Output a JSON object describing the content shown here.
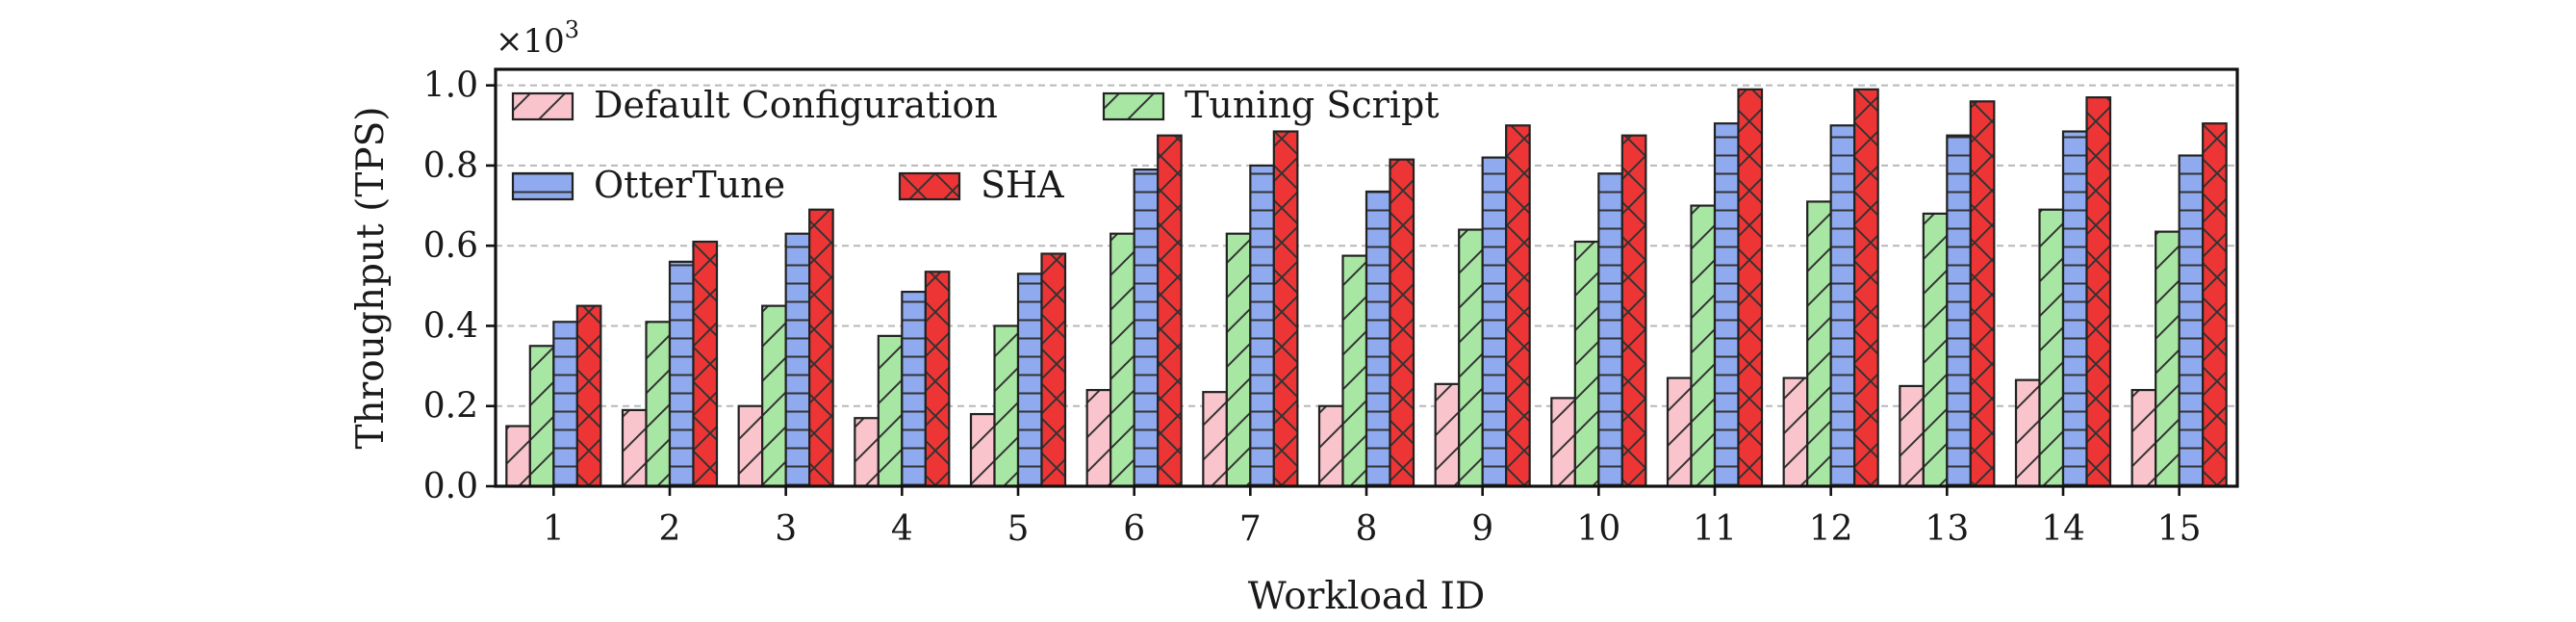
{
  "chart_data": {
    "type": "bar",
    "xlabel": "Workload ID",
    "ylabel": "Throughput (TPS)",
    "y_multiplier": "×10",
    "y_multiplier_exp": "3",
    "ylim": [
      0,
      1.04
    ],
    "yticks": [
      "0.0",
      "0.2",
      "0.4",
      "0.6",
      "0.8",
      "1.0"
    ],
    "grid": "horizontal dashed",
    "legend_position": "top-left",
    "categories": [
      "1",
      "2",
      "3",
      "4",
      "5",
      "6",
      "7",
      "8",
      "9",
      "10",
      "11",
      "12",
      "13",
      "14",
      "15"
    ],
    "series": [
      {
        "name": "Default Configuration",
        "color": "#f9c4cc",
        "hatch": "diagonal",
        "values": [
          0.15,
          0.19,
          0.2,
          0.17,
          0.18,
          0.24,
          0.235,
          0.2,
          0.255,
          0.22,
          0.27,
          0.27,
          0.25,
          0.265,
          0.24
        ]
      },
      {
        "name": "Tuning Script",
        "color": "#a8e6a3",
        "hatch": "diagonal",
        "values": [
          0.35,
          0.41,
          0.45,
          0.375,
          0.4,
          0.63,
          0.63,
          0.575,
          0.64,
          0.61,
          0.7,
          0.71,
          0.68,
          0.69,
          0.635
        ]
      },
      {
        "name": "OtterTune",
        "color": "#8faaee",
        "hatch": "grid",
        "values": [
          0.41,
          0.56,
          0.63,
          0.485,
          0.53,
          0.79,
          0.8,
          0.735,
          0.82,
          0.78,
          0.905,
          0.9,
          0.875,
          0.885,
          0.825
        ]
      },
      {
        "name": "SHA",
        "color": "#ee3535",
        "hatch": "cross",
        "values": [
          0.45,
          0.61,
          0.69,
          0.535,
          0.58,
          0.875,
          0.885,
          0.815,
          0.9,
          0.875,
          0.99,
          0.99,
          0.96,
          0.97,
          0.905
        ]
      }
    ]
  }
}
